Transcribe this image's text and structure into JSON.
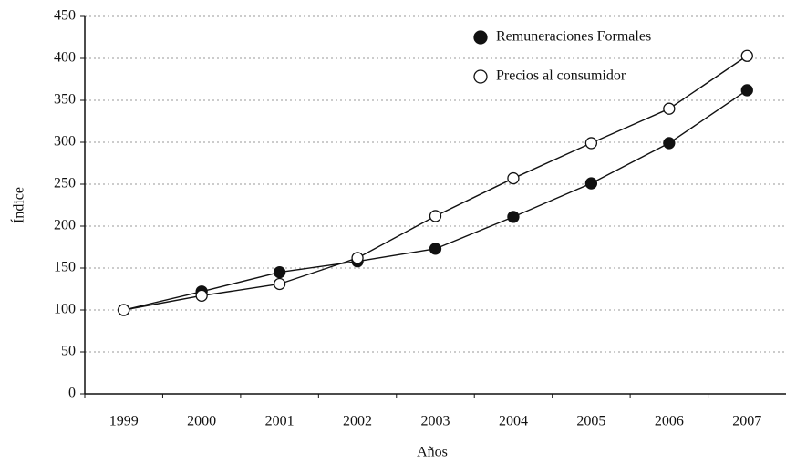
{
  "chart_data": {
    "type": "line",
    "x_label": "Años",
    "y_label": "Índice",
    "categories": [
      "1999",
      "2000",
      "2001",
      "2002",
      "2003",
      "2004",
      "2005",
      "2006",
      "2007"
    ],
    "series": [
      {
        "name": "Remuneraciones Formales",
        "color": "#111111",
        "marker": "filled",
        "values": [
          100,
          122,
          145,
          158,
          173,
          211,
          251,
          299,
          362
        ]
      },
      {
        "name": "Precios al consumidor",
        "color": "#111111",
        "marker": "open",
        "values": [
          100,
          117,
          131,
          162,
          212,
          257,
          299,
          340,
          403
        ]
      }
    ],
    "ylim": [
      0,
      450
    ],
    "yticks": [
      0,
      50,
      100,
      150,
      200,
      250,
      300,
      350,
      400,
      450
    ],
    "grid": true,
    "legend": "upper right"
  }
}
